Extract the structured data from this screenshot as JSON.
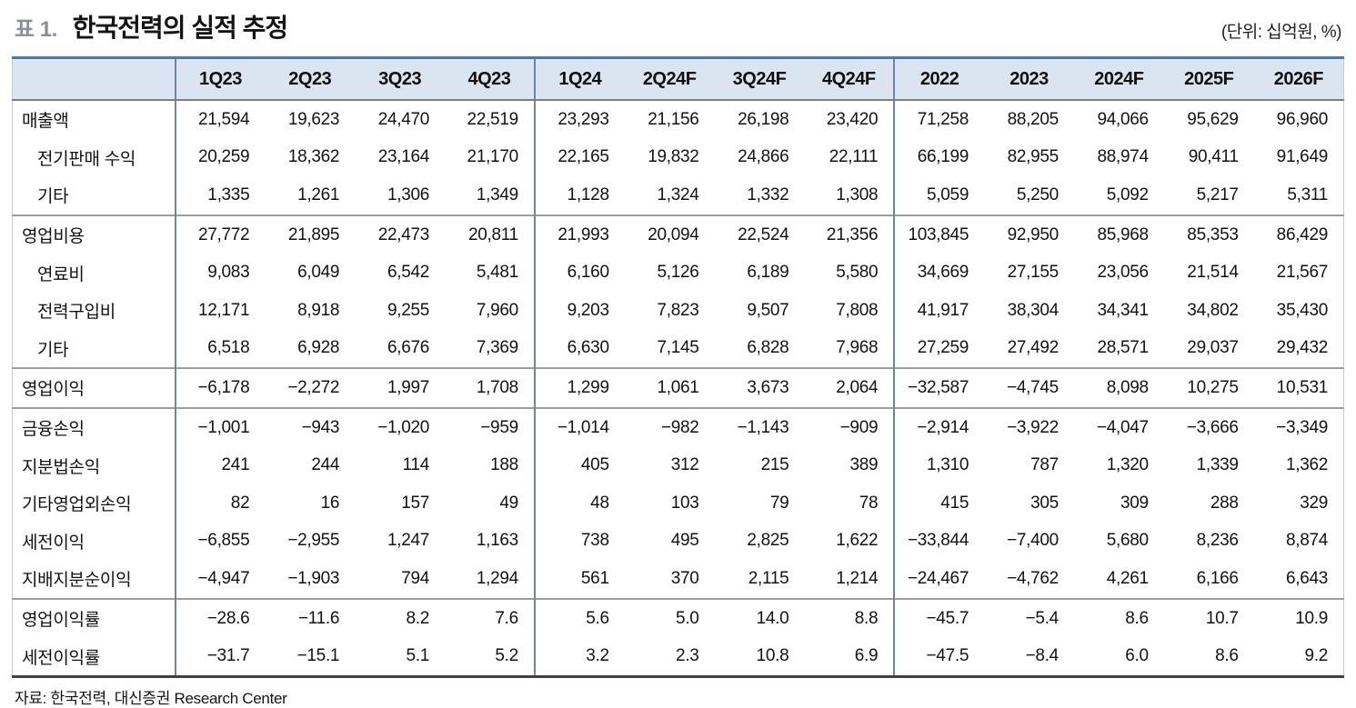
{
  "header": {
    "table_label": "표 1.",
    "title": "한국전력의 실적 추정",
    "unit_note": "(단위: 십억원, %)"
  },
  "table": {
    "columns": [
      "1Q23",
      "2Q23",
      "3Q23",
      "4Q23",
      "1Q24",
      "2Q24F",
      "3Q24F",
      "4Q24F",
      "2022",
      "2023",
      "2024F",
      "2025F",
      "2026F"
    ],
    "group_boundaries_after_column_index": [
      3,
      7
    ],
    "rows": [
      {
        "label": "매출액",
        "indent": false,
        "section": false,
        "values": [
          "21,594",
          "19,623",
          "24,470",
          "22,519",
          "23,293",
          "21,156",
          "26,198",
          "23,420",
          "71,258",
          "88,205",
          "94,066",
          "95,629",
          "96,960"
        ]
      },
      {
        "label": "전기판매 수익",
        "indent": true,
        "section": false,
        "values": [
          "20,259",
          "18,362",
          "23,164",
          "21,170",
          "22,165",
          "19,832",
          "24,866",
          "22,111",
          "66,199",
          "82,955",
          "88,974",
          "90,411",
          "91,649"
        ]
      },
      {
        "label": "기타",
        "indent": true,
        "section": false,
        "values": [
          "1,335",
          "1,261",
          "1,306",
          "1,349",
          "1,128",
          "1,324",
          "1,332",
          "1,308",
          "5,059",
          "5,250",
          "5,092",
          "5,217",
          "5,311"
        ]
      },
      {
        "label": "영업비용",
        "indent": false,
        "section": true,
        "values": [
          "27,772",
          "21,895",
          "22,473",
          "20,811",
          "21,993",
          "20,094",
          "22,524",
          "21,356",
          "103,845",
          "92,950",
          "85,968",
          "85,353",
          "86,429"
        ]
      },
      {
        "label": "연료비",
        "indent": true,
        "section": false,
        "values": [
          "9,083",
          "6,049",
          "6,542",
          "5,481",
          "6,160",
          "5,126",
          "6,189",
          "5,580",
          "34,669",
          "27,155",
          "23,056",
          "21,514",
          "21,567"
        ]
      },
      {
        "label": "전력구입비",
        "indent": true,
        "section": false,
        "values": [
          "12,171",
          "8,918",
          "9,255",
          "7,960",
          "9,203",
          "7,823",
          "9,507",
          "7,808",
          "41,917",
          "38,304",
          "34,341",
          "34,802",
          "35,430"
        ]
      },
      {
        "label": "기타",
        "indent": true,
        "section": false,
        "values": [
          "6,518",
          "6,928",
          "6,676",
          "7,369",
          "6,630",
          "7,145",
          "6,828",
          "7,968",
          "27,259",
          "27,492",
          "28,571",
          "29,037",
          "29,432"
        ]
      },
      {
        "label": "영업이익",
        "indent": false,
        "section": true,
        "values": [
          "−6,178",
          "−2,272",
          "1,997",
          "1,708",
          "1,299",
          "1,061",
          "3,673",
          "2,064",
          "−32,587",
          "−4,745",
          "8,098",
          "10,275",
          "10,531"
        ]
      },
      {
        "label": "금융손익",
        "indent": false,
        "section": true,
        "values": [
          "−1,001",
          "−943",
          "−1,020",
          "−959",
          "−1,014",
          "−982",
          "−1,143",
          "−909",
          "−2,914",
          "−3,922",
          "−4,047",
          "−3,666",
          "−3,349"
        ]
      },
      {
        "label": "지분법손익",
        "indent": false,
        "section": false,
        "values": [
          "241",
          "244",
          "114",
          "188",
          "405",
          "312",
          "215",
          "389",
          "1,310",
          "787",
          "1,320",
          "1,339",
          "1,362"
        ]
      },
      {
        "label": "기타영업외손익",
        "indent": false,
        "section": false,
        "values": [
          "82",
          "16",
          "157",
          "49",
          "48",
          "103",
          "79",
          "78",
          "415",
          "305",
          "309",
          "288",
          "329"
        ]
      },
      {
        "label": "세전이익",
        "indent": false,
        "section": false,
        "values": [
          "−6,855",
          "−2,955",
          "1,247",
          "1,163",
          "738",
          "495",
          "2,825",
          "1,622",
          "−33,844",
          "−7,400",
          "5,680",
          "8,236",
          "8,874"
        ]
      },
      {
        "label": "지배지분순이익",
        "indent": false,
        "section": false,
        "values": [
          "−4,947",
          "−1,903",
          "794",
          "1,294",
          "561",
          "370",
          "2,115",
          "1,214",
          "−24,467",
          "−4,762",
          "4,261",
          "6,166",
          "6,643"
        ]
      },
      {
        "label": "영업이익률",
        "indent": false,
        "section": true,
        "values": [
          "−28.6",
          "−11.6",
          "8.2",
          "7.6",
          "5.6",
          "5.0",
          "14.0",
          "8.8",
          "−45.7",
          "−5.4",
          "8.6",
          "10.7",
          "10.9"
        ]
      },
      {
        "label": "세전이익률",
        "indent": false,
        "section": false,
        "values": [
          "−31.7",
          "−15.1",
          "5.1",
          "5.2",
          "3.2",
          "2.3",
          "10.8",
          "6.9",
          "−47.5",
          "−8.4",
          "6.0",
          "8.6",
          "9.2"
        ]
      }
    ]
  },
  "source": "자료: 한국전력, 대신증권 Research Center",
  "colors": {
    "header_bg": "#dbe5f1",
    "top_border": "#4d79a8",
    "divider": "#6d85a0",
    "section_line": "#9d9d9d",
    "bottom_border": "#3f3f3f"
  }
}
